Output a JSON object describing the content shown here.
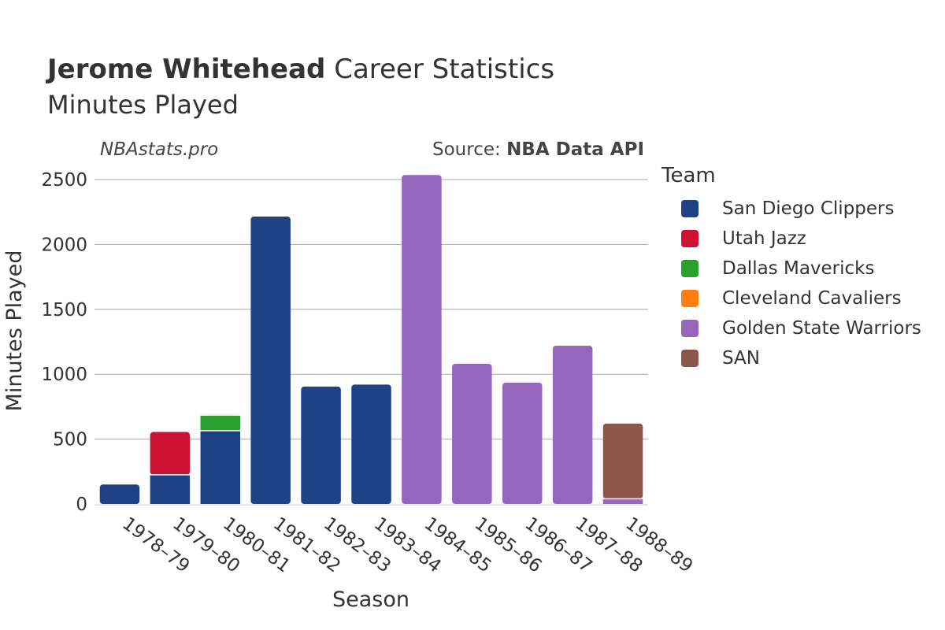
{
  "header": {
    "title_bold": "Jerome Whitehead",
    "title_rest": " Career Statistics",
    "subtitle": "Minutes Played",
    "watermark": "NBAstats.pro",
    "source_prefix": "Source: ",
    "source_bold": "NBA Data API"
  },
  "chart_data": {
    "type": "bar",
    "stacked": true,
    "xlabel": "Season",
    "ylabel": "Minutes Played",
    "ylim": [
      0,
      2600
    ],
    "yticks": [
      0,
      500,
      1000,
      1500,
      2000,
      2500
    ],
    "categories": [
      "1978–79",
      "1979–80",
      "1980–81",
      "1981–82",
      "1982–83",
      "1983–84",
      "1984–85",
      "1985–86",
      "1986–87",
      "1987–88",
      "1988–89"
    ],
    "legend_title": "Team",
    "legend_position": "right",
    "grid": true,
    "series": [
      {
        "name": "San Diego Clippers",
        "color": "#1f4287",
        "values": [
          150,
          225,
          565,
          2215,
          905,
          920,
          0,
          0,
          0,
          0,
          0
        ]
      },
      {
        "name": "Utah Jazz",
        "color": "#cc1133",
        "values": [
          0,
          330,
          0,
          0,
          0,
          0,
          0,
          0,
          0,
          0,
          0
        ]
      },
      {
        "name": "Dallas Mavericks",
        "color": "#2ca02c",
        "values": [
          0,
          0,
          120,
          0,
          0,
          0,
          0,
          0,
          0,
          0,
          0
        ]
      },
      {
        "name": "Cleveland Cavaliers",
        "color": "#ff7f0e",
        "values": [
          0,
          0,
          5,
          0,
          0,
          0,
          0,
          0,
          0,
          0,
          0
        ]
      },
      {
        "name": "Golden State Warriors",
        "color": "#9467bd",
        "values": [
          0,
          0,
          0,
          0,
          0,
          0,
          2535,
          1080,
          935,
          1220,
          40
        ]
      },
      {
        "name": "SAN",
        "color": "#8c564b",
        "values": [
          0,
          0,
          0,
          0,
          0,
          0,
          0,
          0,
          0,
          0,
          580
        ]
      }
    ]
  }
}
